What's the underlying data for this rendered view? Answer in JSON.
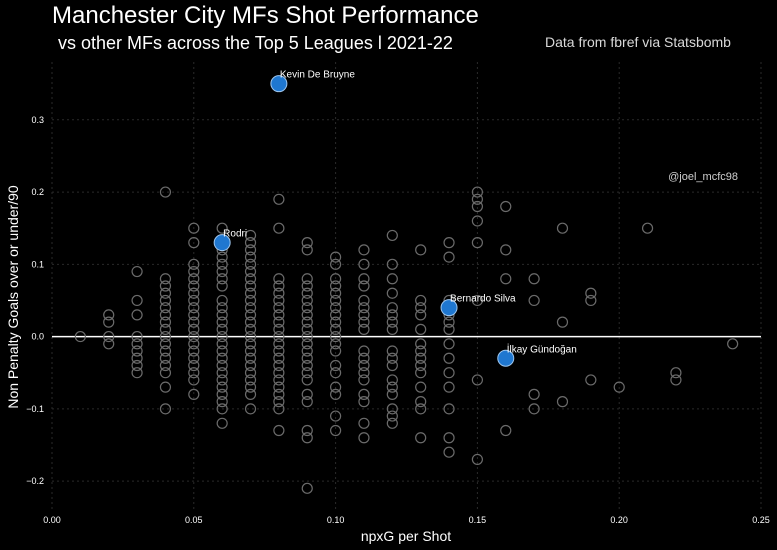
{
  "title": "Manchester City MFs Shot Performance",
  "subtitle": "vs other MFs across the Top 5 Leagues l 2021-22",
  "source": "Data from fbref via Statsbomb",
  "handle": "@joel_mcfc98",
  "colors": {
    "background": "#000000",
    "highlight": "#1f77d0",
    "other_points": "#6b6b6b",
    "zero_line": "#ffffff",
    "grid": "#2a2a2a"
  },
  "chart_data": {
    "type": "scatter",
    "xlabel": "npxG per Shot",
    "ylabel": "Non Penalty Goals over or under/90",
    "xlim": [
      0.0,
      0.25
    ],
    "ylim": [
      -0.24,
      0.38
    ],
    "xticks": [
      0.0,
      0.05,
      0.1,
      0.15,
      0.2,
      0.25
    ],
    "xtick_labels": [
      "0.00",
      "0.05",
      "0.10",
      "0.15",
      "0.20",
      "0.25"
    ],
    "yticks": [
      -0.2,
      -0.1,
      0.0,
      0.1,
      0.2,
      0.3
    ],
    "ytick_labels": [
      "−0.2",
      "−0.1",
      "0.0",
      "0.1",
      "0.2",
      "0.3"
    ],
    "grid": true,
    "reference_line_y": 0.0,
    "highlighted": [
      {
        "name": "Kevin De Bruyne",
        "x": 0.08,
        "y": 0.35
      },
      {
        "name": "Rodri",
        "x": 0.06,
        "y": 0.13
      },
      {
        "name": "Bernardo Silva",
        "x": 0.14,
        "y": 0.04
      },
      {
        "name": "İlkay Gündoğan",
        "x": 0.16,
        "y": -0.03
      }
    ],
    "others": [
      [
        0.01,
        0.0
      ],
      [
        0.02,
        0.03
      ],
      [
        0.02,
        0.02
      ],
      [
        0.02,
        0.0
      ],
      [
        0.02,
        -0.01
      ],
      [
        0.03,
        0.09
      ],
      [
        0.03,
        0.05
      ],
      [
        0.03,
        0.03
      ],
      [
        0.03,
        0.0
      ],
      [
        0.03,
        -0.01
      ],
      [
        0.03,
        -0.02
      ],
      [
        0.03,
        -0.03
      ],
      [
        0.03,
        -0.04
      ],
      [
        0.03,
        -0.05
      ],
      [
        0.04,
        0.2
      ],
      [
        0.04,
        0.08
      ],
      [
        0.04,
        0.07
      ],
      [
        0.04,
        0.06
      ],
      [
        0.04,
        0.05
      ],
      [
        0.04,
        0.04
      ],
      [
        0.04,
        0.03
      ],
      [
        0.04,
        0.02
      ],
      [
        0.04,
        0.01
      ],
      [
        0.04,
        0.0
      ],
      [
        0.04,
        -0.01
      ],
      [
        0.04,
        -0.02
      ],
      [
        0.04,
        -0.03
      ],
      [
        0.04,
        -0.04
      ],
      [
        0.04,
        -0.05
      ],
      [
        0.04,
        -0.07
      ],
      [
        0.04,
        -0.1
      ],
      [
        0.05,
        0.15
      ],
      [
        0.05,
        0.13
      ],
      [
        0.05,
        0.1
      ],
      [
        0.05,
        0.09
      ],
      [
        0.05,
        0.08
      ],
      [
        0.05,
        0.07
      ],
      [
        0.05,
        0.06
      ],
      [
        0.05,
        0.05
      ],
      [
        0.05,
        0.04
      ],
      [
        0.05,
        0.03
      ],
      [
        0.05,
        0.02
      ],
      [
        0.05,
        0.01
      ],
      [
        0.05,
        0.0
      ],
      [
        0.05,
        -0.01
      ],
      [
        0.05,
        -0.02
      ],
      [
        0.05,
        -0.03
      ],
      [
        0.05,
        -0.04
      ],
      [
        0.05,
        -0.05
      ],
      [
        0.05,
        -0.06
      ],
      [
        0.05,
        -0.08
      ],
      [
        0.06,
        0.15
      ],
      [
        0.06,
        0.12
      ],
      [
        0.06,
        0.11
      ],
      [
        0.06,
        0.1
      ],
      [
        0.06,
        0.09
      ],
      [
        0.06,
        0.08
      ],
      [
        0.06,
        0.07
      ],
      [
        0.06,
        0.05
      ],
      [
        0.06,
        0.04
      ],
      [
        0.06,
        0.03
      ],
      [
        0.06,
        0.02
      ],
      [
        0.06,
        0.01
      ],
      [
        0.06,
        0.0
      ],
      [
        0.06,
        -0.01
      ],
      [
        0.06,
        -0.02
      ],
      [
        0.06,
        -0.03
      ],
      [
        0.06,
        -0.04
      ],
      [
        0.06,
        -0.05
      ],
      [
        0.06,
        -0.06
      ],
      [
        0.06,
        -0.07
      ],
      [
        0.06,
        -0.08
      ],
      [
        0.06,
        -0.09
      ],
      [
        0.06,
        -0.1
      ],
      [
        0.06,
        -0.12
      ],
      [
        0.07,
        0.14
      ],
      [
        0.07,
        0.13
      ],
      [
        0.07,
        0.12
      ],
      [
        0.07,
        0.11
      ],
      [
        0.07,
        0.1
      ],
      [
        0.07,
        0.09
      ],
      [
        0.07,
        0.08
      ],
      [
        0.07,
        0.07
      ],
      [
        0.07,
        0.06
      ],
      [
        0.07,
        0.05
      ],
      [
        0.07,
        0.04
      ],
      [
        0.07,
        0.03
      ],
      [
        0.07,
        0.02
      ],
      [
        0.07,
        0.01
      ],
      [
        0.07,
        0.0
      ],
      [
        0.07,
        -0.01
      ],
      [
        0.07,
        -0.02
      ],
      [
        0.07,
        -0.03
      ],
      [
        0.07,
        -0.04
      ],
      [
        0.07,
        -0.05
      ],
      [
        0.07,
        -0.06
      ],
      [
        0.07,
        -0.07
      ],
      [
        0.07,
        -0.08
      ],
      [
        0.07,
        -0.1
      ],
      [
        0.08,
        0.19
      ],
      [
        0.08,
        0.15
      ],
      [
        0.08,
        0.08
      ],
      [
        0.08,
        0.07
      ],
      [
        0.08,
        0.06
      ],
      [
        0.08,
        0.05
      ],
      [
        0.08,
        0.04
      ],
      [
        0.08,
        0.03
      ],
      [
        0.08,
        0.02
      ],
      [
        0.08,
        0.01
      ],
      [
        0.08,
        0.0
      ],
      [
        0.08,
        -0.01
      ],
      [
        0.08,
        -0.02
      ],
      [
        0.08,
        -0.03
      ],
      [
        0.08,
        -0.04
      ],
      [
        0.08,
        -0.05
      ],
      [
        0.08,
        -0.06
      ],
      [
        0.08,
        -0.07
      ],
      [
        0.08,
        -0.08
      ],
      [
        0.08,
        -0.09
      ],
      [
        0.08,
        -0.1
      ],
      [
        0.08,
        -0.13
      ],
      [
        0.09,
        0.13
      ],
      [
        0.09,
        0.12
      ],
      [
        0.09,
        0.08
      ],
      [
        0.09,
        0.07
      ],
      [
        0.09,
        0.06
      ],
      [
        0.09,
        0.05
      ],
      [
        0.09,
        0.04
      ],
      [
        0.09,
        0.03
      ],
      [
        0.09,
        0.02
      ],
      [
        0.09,
        0.01
      ],
      [
        0.09,
        0.0
      ],
      [
        0.09,
        -0.01
      ],
      [
        0.09,
        -0.02
      ],
      [
        0.09,
        -0.03
      ],
      [
        0.09,
        -0.04
      ],
      [
        0.09,
        -0.05
      ],
      [
        0.09,
        -0.06
      ],
      [
        0.09,
        -0.08
      ],
      [
        0.09,
        -0.09
      ],
      [
        0.09,
        -0.13
      ],
      [
        0.09,
        -0.14
      ],
      [
        0.09,
        -0.21
      ],
      [
        0.1,
        0.11
      ],
      [
        0.1,
        0.1
      ],
      [
        0.1,
        0.08
      ],
      [
        0.1,
        0.07
      ],
      [
        0.1,
        0.06
      ],
      [
        0.1,
        0.05
      ],
      [
        0.1,
        0.04
      ],
      [
        0.1,
        0.03
      ],
      [
        0.1,
        0.02
      ],
      [
        0.1,
        0.01
      ],
      [
        0.1,
        0.0
      ],
      [
        0.1,
        -0.01
      ],
      [
        0.1,
        -0.02
      ],
      [
        0.1,
        -0.04
      ],
      [
        0.1,
        -0.05
      ],
      [
        0.1,
        -0.07
      ],
      [
        0.1,
        -0.08
      ],
      [
        0.1,
        -0.11
      ],
      [
        0.1,
        -0.13
      ],
      [
        0.11,
        0.12
      ],
      [
        0.11,
        0.1
      ],
      [
        0.11,
        0.08
      ],
      [
        0.11,
        0.07
      ],
      [
        0.11,
        0.05
      ],
      [
        0.11,
        0.04
      ],
      [
        0.11,
        0.03
      ],
      [
        0.11,
        0.02
      ],
      [
        0.11,
        0.01
      ],
      [
        0.11,
        -0.02
      ],
      [
        0.11,
        -0.03
      ],
      [
        0.11,
        -0.04
      ],
      [
        0.11,
        -0.05
      ],
      [
        0.11,
        -0.06
      ],
      [
        0.11,
        -0.08
      ],
      [
        0.11,
        -0.09
      ],
      [
        0.11,
        -0.12
      ],
      [
        0.11,
        -0.14
      ],
      [
        0.12,
        0.14
      ],
      [
        0.12,
        0.1
      ],
      [
        0.12,
        0.08
      ],
      [
        0.12,
        0.06
      ],
      [
        0.12,
        0.04
      ],
      [
        0.12,
        0.03
      ],
      [
        0.12,
        0.02
      ],
      [
        0.12,
        0.01
      ],
      [
        0.12,
        -0.02
      ],
      [
        0.12,
        -0.03
      ],
      [
        0.12,
        -0.04
      ],
      [
        0.12,
        -0.06
      ],
      [
        0.12,
        -0.07
      ],
      [
        0.12,
        -0.08
      ],
      [
        0.12,
        -0.1
      ],
      [
        0.12,
        -0.11
      ],
      [
        0.12,
        -0.12
      ],
      [
        0.13,
        0.12
      ],
      [
        0.13,
        0.05
      ],
      [
        0.13,
        0.04
      ],
      [
        0.13,
        0.03
      ],
      [
        0.13,
        0.01
      ],
      [
        0.13,
        -0.01
      ],
      [
        0.13,
        -0.02
      ],
      [
        0.13,
        -0.03
      ],
      [
        0.13,
        -0.04
      ],
      [
        0.13,
        -0.05
      ],
      [
        0.13,
        -0.07
      ],
      [
        0.13,
        -0.09
      ],
      [
        0.13,
        -0.1
      ],
      [
        0.13,
        -0.14
      ],
      [
        0.14,
        0.13
      ],
      [
        0.14,
        0.11
      ],
      [
        0.14,
        0.05
      ],
      [
        0.14,
        0.03
      ],
      [
        0.14,
        0.02
      ],
      [
        0.14,
        0.01
      ],
      [
        0.14,
        -0.01
      ],
      [
        0.14,
        -0.03
      ],
      [
        0.14,
        -0.05
      ],
      [
        0.14,
        -0.07
      ],
      [
        0.14,
        -0.1
      ],
      [
        0.14,
        -0.14
      ],
      [
        0.14,
        -0.16
      ],
      [
        0.15,
        0.2
      ],
      [
        0.15,
        0.19
      ],
      [
        0.15,
        0.18
      ],
      [
        0.15,
        0.16
      ],
      [
        0.15,
        0.13
      ],
      [
        0.15,
        0.05
      ],
      [
        0.15,
        -0.06
      ],
      [
        0.15,
        -0.17
      ],
      [
        0.16,
        0.18
      ],
      [
        0.16,
        0.12
      ],
      [
        0.16,
        0.08
      ],
      [
        0.16,
        -0.13
      ],
      [
        0.17,
        0.08
      ],
      [
        0.17,
        0.05
      ],
      [
        0.17,
        -0.08
      ],
      [
        0.17,
        -0.1
      ],
      [
        0.18,
        0.15
      ],
      [
        0.18,
        0.02
      ],
      [
        0.18,
        -0.09
      ],
      [
        0.19,
        0.06
      ],
      [
        0.19,
        0.05
      ],
      [
        0.19,
        -0.06
      ],
      [
        0.2,
        -0.07
      ],
      [
        0.21,
        0.15
      ],
      [
        0.22,
        -0.05
      ],
      [
        0.22,
        -0.06
      ],
      [
        0.24,
        -0.01
      ]
    ]
  }
}
